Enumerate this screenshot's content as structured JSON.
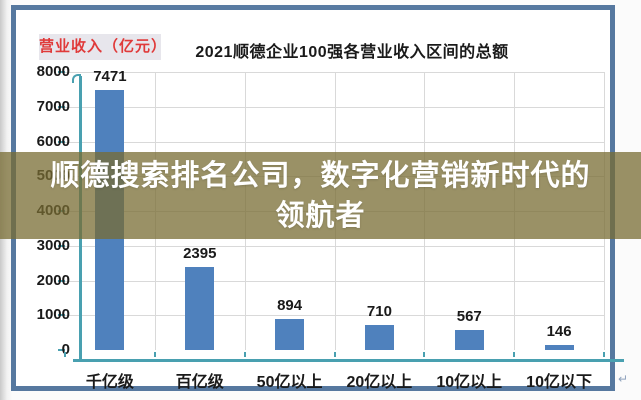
{
  "header": {
    "unit_label": "营业收入（亿元）",
    "title": "2021顺德企业100强各营业收入区间的总额"
  },
  "chart_data": {
    "type": "bar",
    "title": "2021顺德企业100强各营业收入区间的总额",
    "ylabel": "营业收入（亿元）",
    "xlabel": "",
    "categories": [
      "千亿级",
      "百亿级",
      "50亿以上",
      "20亿以上",
      "10亿以上",
      "10亿以下"
    ],
    "values": [
      7471,
      2395,
      894,
      710,
      567,
      146
    ],
    "ylim": [
      0,
      8000
    ],
    "ytick_interval": 1000,
    "grid": true,
    "legend_position": "none",
    "bar_color": "#4f81bd",
    "axis_color": "#49a0b0",
    "gridline_color": "#d9d9d9"
  },
  "overlay": {
    "line1": "顺德搜索排名公司，数字化营销新时代的",
    "line2": "领航者",
    "band_color": "rgba(120,108,51,0.75)",
    "text_color": "#ffffff"
  },
  "styles": {
    "frame_border_color": "#56789f",
    "unit_label_text_color": "#e03a3a",
    "unit_label_bg_color": "#e7e6ec"
  },
  "misc": {
    "return_mark": "↵"
  }
}
